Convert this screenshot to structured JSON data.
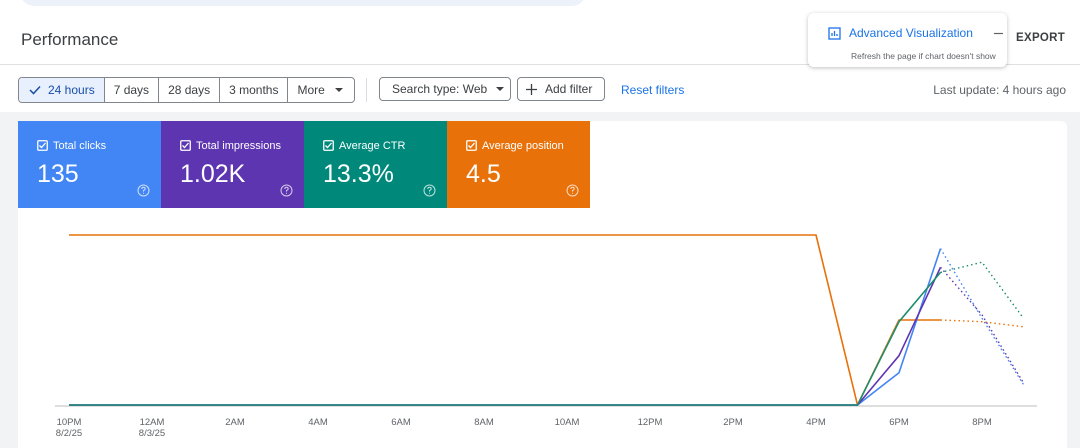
{
  "header": {
    "title": "Performance"
  },
  "popup": {
    "title": "Advanced Visualization",
    "subtitle": "Refresh the page if chart doesn't show",
    "action": "EXPORT"
  },
  "filters": {
    "date_ranges": [
      "24 hours",
      "7 days",
      "28 days",
      "3 months",
      "More"
    ],
    "selected": 0,
    "search_type": "Search type: Web",
    "add_filter": "Add filter",
    "reset": "Reset filters",
    "last_update": "Last update: 4 hours ago"
  },
  "metrics": [
    {
      "label": "Total clicks",
      "value": "135",
      "color": "#4285f4"
    },
    {
      "label": "Total impressions",
      "value": "1.02K",
      "color": "#5e35b1"
    },
    {
      "label": "Average CTR",
      "value": "13.3%",
      "color": "#00897b"
    },
    {
      "label": "Average position",
      "value": "4.5",
      "color": "#e8710a"
    }
  ],
  "chart_data": {
    "type": "line",
    "categories": [
      "10PM",
      null,
      "12AM",
      null,
      "2AM",
      null,
      "4AM",
      null,
      "6AM",
      null,
      "8AM",
      null,
      "10AM",
      null,
      "12PM",
      null,
      "2PM",
      null,
      "4PM",
      null,
      "6PM",
      null,
      "8PM",
      null
    ],
    "x_dates": [
      "8/2/25",
      null,
      "8/3/25",
      null,
      null,
      null,
      null,
      null,
      null,
      null,
      null,
      null,
      null,
      null,
      null,
      null,
      null,
      null,
      null,
      null,
      null,
      null,
      null,
      null
    ],
    "ylim": [
      0,
      100
    ],
    "series": [
      {
        "color": "#e8710a",
        "values": [
          100,
          100,
          100,
          100,
          100,
          100,
          100,
          100,
          100,
          100,
          100,
          100,
          100,
          100,
          100,
          100,
          100,
          100,
          100,
          0,
          50,
          50,
          null,
          null
        ],
        "partial_values": [
          null,
          null,
          null,
          null,
          null,
          null,
          null,
          null,
          null,
          null,
          null,
          null,
          null,
          null,
          null,
          null,
          null,
          null,
          null,
          null,
          null,
          50,
          49,
          46
        ]
      },
      {
        "color": "#4285f4",
        "values": [
          0,
          0,
          0,
          0,
          0,
          0,
          0,
          0,
          0,
          0,
          0,
          0,
          0,
          0,
          0,
          0,
          0,
          0,
          0,
          0,
          19,
          92,
          null,
          null
        ],
        "partial_values": [
          null,
          null,
          null,
          null,
          null,
          null,
          null,
          null,
          null,
          null,
          null,
          null,
          null,
          null,
          null,
          null,
          null,
          null,
          null,
          null,
          null,
          92,
          51,
          12
        ]
      },
      {
        "color": "#5e35b1",
        "values": [
          0,
          0,
          0,
          0,
          0,
          0,
          0,
          0,
          0,
          0,
          0,
          0,
          0,
          0,
          0,
          0,
          0,
          0,
          0,
          0,
          29,
          81,
          null,
          null
        ],
        "partial_values": [
          null,
          null,
          null,
          null,
          null,
          null,
          null,
          null,
          null,
          null,
          null,
          null,
          null,
          null,
          null,
          null,
          null,
          null,
          null,
          null,
          null,
          81,
          53,
          13
        ]
      },
      {
        "color": "#1e8e6e",
        "values": [
          0,
          0,
          0,
          0,
          0,
          0,
          0,
          0,
          0,
          0,
          0,
          0,
          0,
          0,
          0,
          0,
          0,
          0,
          0,
          0,
          49,
          78,
          null,
          null
        ],
        "partial_values": [
          null,
          null,
          null,
          null,
          null,
          null,
          null,
          null,
          null,
          null,
          null,
          null,
          null,
          null,
          null,
          null,
          null,
          null,
          null,
          null,
          null,
          78,
          84,
          51
        ]
      }
    ]
  }
}
